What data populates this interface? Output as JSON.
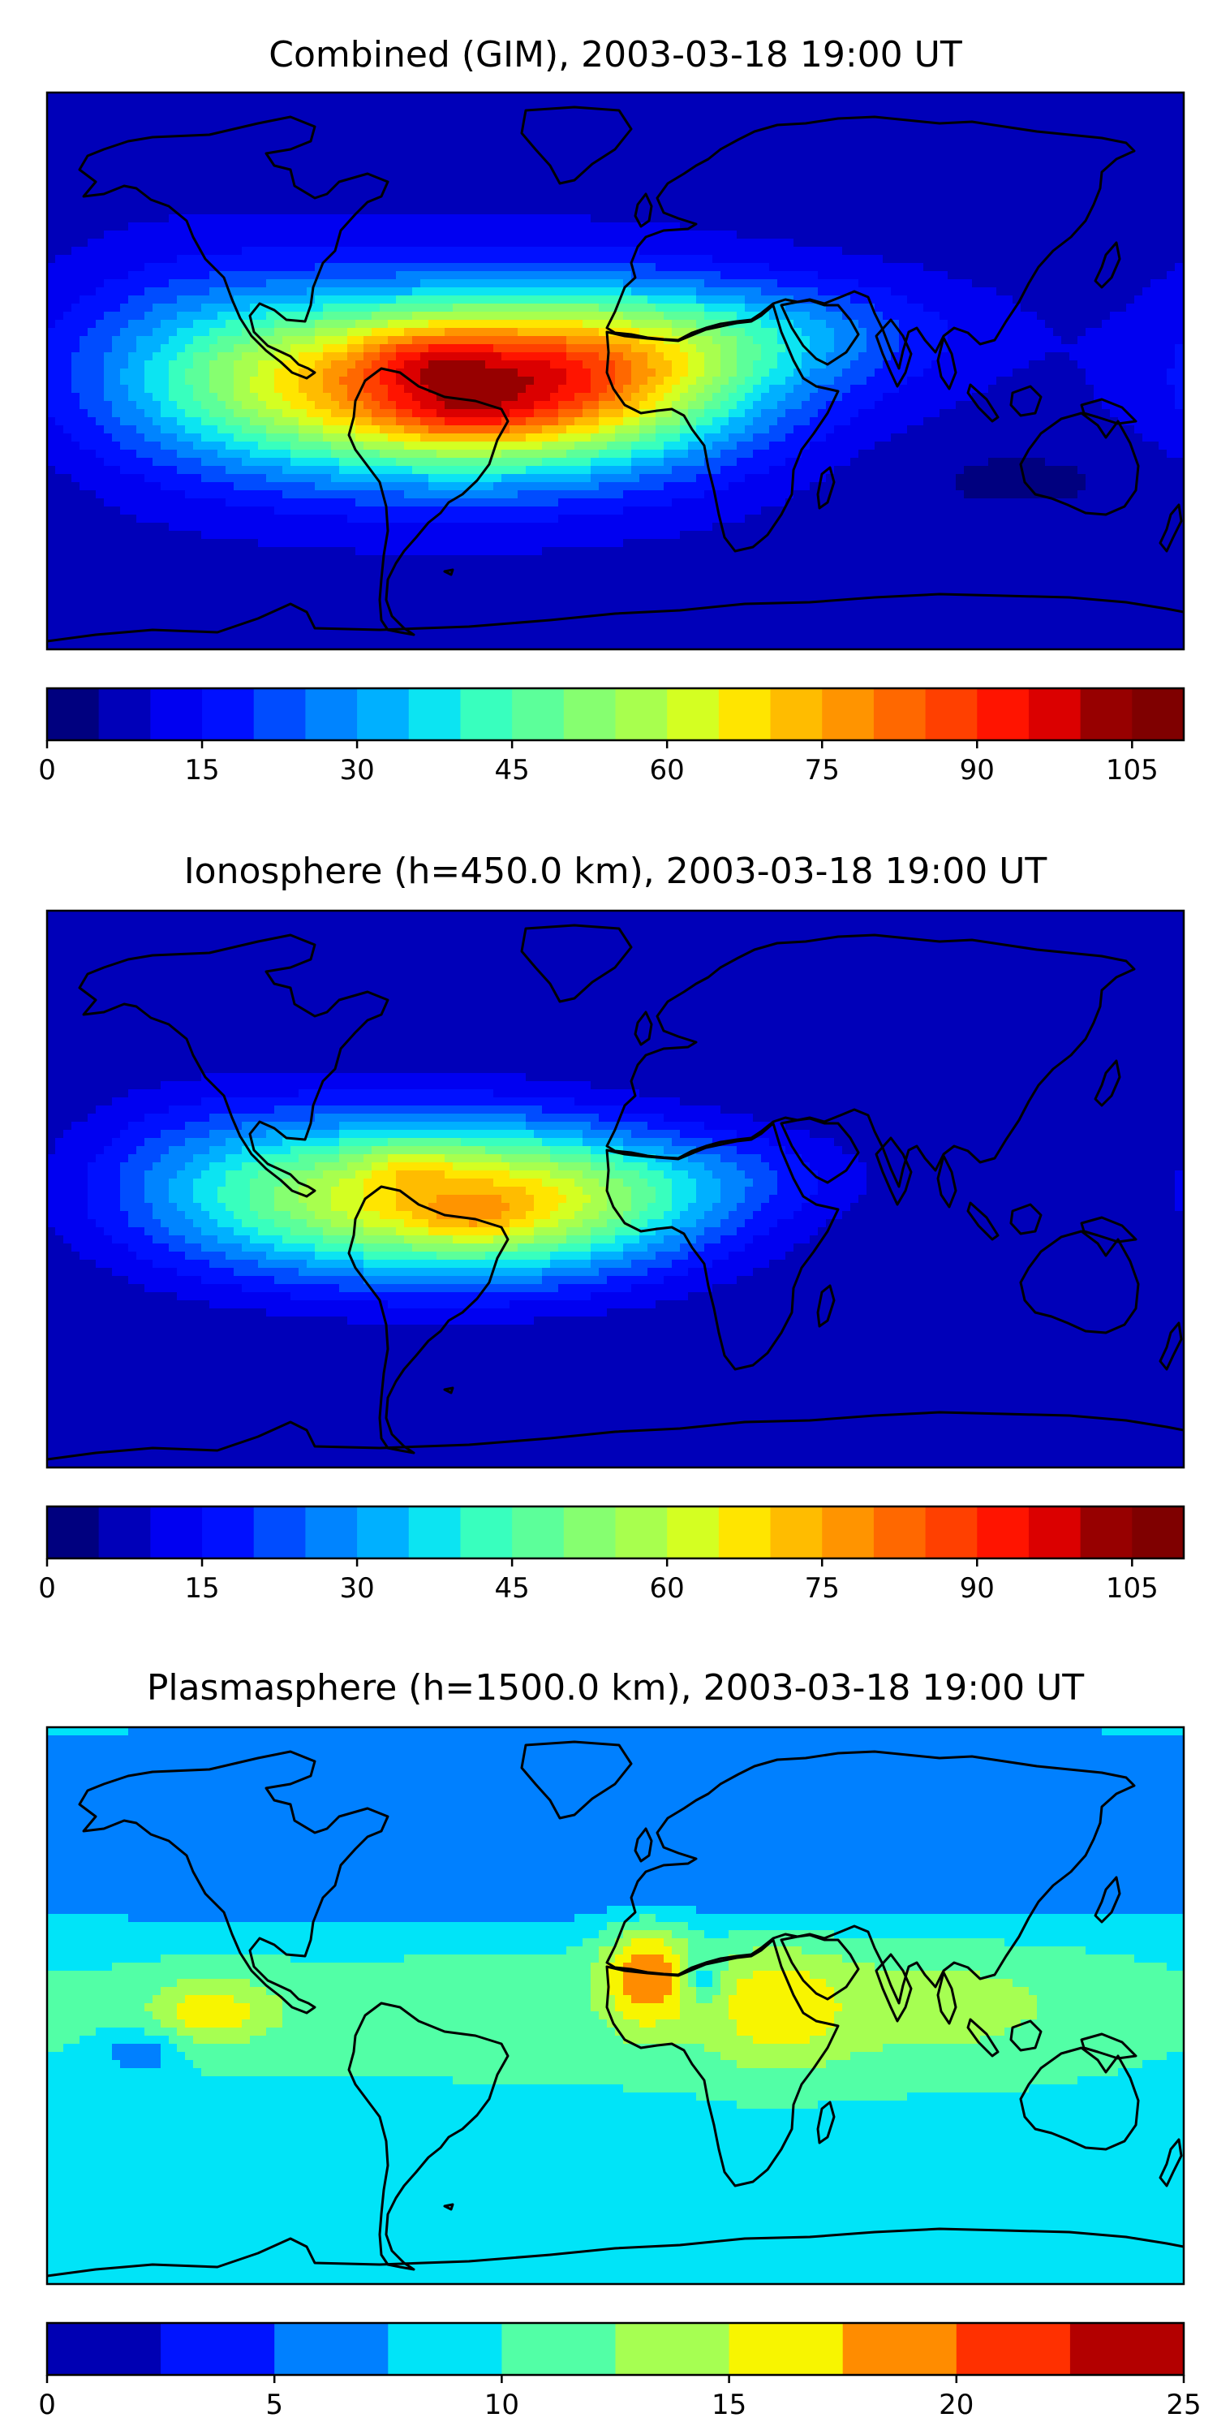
{
  "chart_data": [
    {
      "type": "heatmap",
      "title": "Combined (GIM), 2003-03-18 19:00 UT",
      "colorbar": {
        "min": 0,
        "max": 110,
        "step": 5,
        "ticks": [
          0,
          15,
          30,
          45,
          60,
          75,
          90,
          105
        ],
        "colors": [
          "#00007f",
          "#0000b9",
          "#0000f1",
          "#0010ff",
          "#004cff",
          "#0084ff",
          "#00b0ff",
          "#0ce4f2",
          "#38ffbe",
          "#5cff9a",
          "#86ff70",
          "#a8ff4e",
          "#d4ff22",
          "#ffe500",
          "#ffbc00",
          "#ff9400",
          "#ff6800",
          "#ff4000",
          "#ff1400",
          "#db0000",
          "#970000",
          "#7f0000"
        ]
      },
      "background_value": 8,
      "field": [
        {
          "lon": -55,
          "lat": -5,
          "amp": 76,
          "sx": 55,
          "sy": 20
        },
        {
          "lon": -60,
          "lat": 5,
          "amp": 10,
          "sx": 14,
          "sy": 7
        },
        {
          "lon": -48,
          "lat": -14,
          "amp": 10,
          "sx": 16,
          "sy": 6
        },
        {
          "lon": -5,
          "lat": 0,
          "amp": 28,
          "sx": 38,
          "sy": 18
        },
        {
          "lon": 50,
          "lat": 12,
          "amp": 16,
          "sx": 40,
          "sy": 12
        },
        {
          "lon": -130,
          "lat": 5,
          "amp": 12,
          "sx": 30,
          "sy": 22
        },
        {
          "lon": 130,
          "lat": -35,
          "amp": -4,
          "sx": 40,
          "sy": 10
        }
      ]
    },
    {
      "type": "heatmap",
      "title": "Ionosphere  (h=450.0 km), 2003-03-18 19:00 UT",
      "colorbar": {
        "min": 0,
        "max": 110,
        "step": 5,
        "ticks": [
          0,
          15,
          30,
          45,
          60,
          75,
          90,
          105
        ],
        "colors": [
          "#00007f",
          "#0000b9",
          "#0000f1",
          "#0010ff",
          "#004cff",
          "#0084ff",
          "#00b0ff",
          "#0ce4f2",
          "#38ffbe",
          "#5cff9a",
          "#86ff70",
          "#a8ff4e",
          "#d4ff22",
          "#ffe500",
          "#ffbc00",
          "#ff9400",
          "#ff6800",
          "#ff4000",
          "#ff1400",
          "#db0000",
          "#970000",
          "#7f0000"
        ]
      },
      "background_value": 5,
      "field": [
        {
          "lon": -60,
          "lat": -3,
          "amp": 60,
          "sx": 50,
          "sy": 18
        },
        {
          "lon": -65,
          "lat": 8,
          "amp": 8,
          "sx": 10,
          "sy": 5
        },
        {
          "lon": -45,
          "lat": -10,
          "amp": 8,
          "sx": 12,
          "sy": 5
        },
        {
          "lon": -10,
          "lat": -5,
          "amp": 18,
          "sx": 35,
          "sy": 15
        },
        {
          "lon": 40,
          "lat": 5,
          "amp": 8,
          "sx": 30,
          "sy": 10
        },
        {
          "lon": -130,
          "lat": 5,
          "amp": 10,
          "sx": 30,
          "sy": 20
        }
      ]
    },
    {
      "type": "heatmap",
      "title": "Plasmasphere (h=1500.0 km), 2003-03-18 19:00 UT",
      "colorbar": {
        "min": 0,
        "max": 25,
        "step": 2.5,
        "ticks": [
          0,
          5,
          10,
          15,
          20,
          25
        ],
        "colors": [
          "#0000b3",
          "#0014ff",
          "#0080ff",
          "#00e4f8",
          "#52ffa6",
          "#a6ff52",
          "#f8f500",
          "#ff8c00",
          "#ff3000",
          "#b30000"
        ]
      },
      "background_value": 8,
      "field": [
        {
          "lon": 0,
          "lat": 0,
          "amp": 3,
          "sx": 200,
          "sy": 28
        },
        {
          "lon": 0,
          "lat": 40,
          "amp": -4,
          "sx": 200,
          "sy": 12
        },
        {
          "lon": 0,
          "lat": 75,
          "amp": -3,
          "sx": 200,
          "sy": 8
        },
        {
          "lon": 10,
          "lat": 10,
          "amp": 9,
          "sx": 10,
          "sy": 12
        },
        {
          "lon": 50,
          "lat": 0,
          "amp": 5,
          "sx": 15,
          "sy": 15
        },
        {
          "lon": -128,
          "lat": -2,
          "amp": 6,
          "sx": 15,
          "sy": 8
        },
        {
          "lon": 100,
          "lat": 0,
          "amp": 3,
          "sx": 40,
          "sy": 15
        },
        {
          "lon": -150,
          "lat": -15,
          "amp": -5,
          "sx": 8,
          "sy": 5
        },
        {
          "lon": 28,
          "lat": 8,
          "amp": -5,
          "sx": 4,
          "sy": 6
        }
      ]
    }
  ]
}
